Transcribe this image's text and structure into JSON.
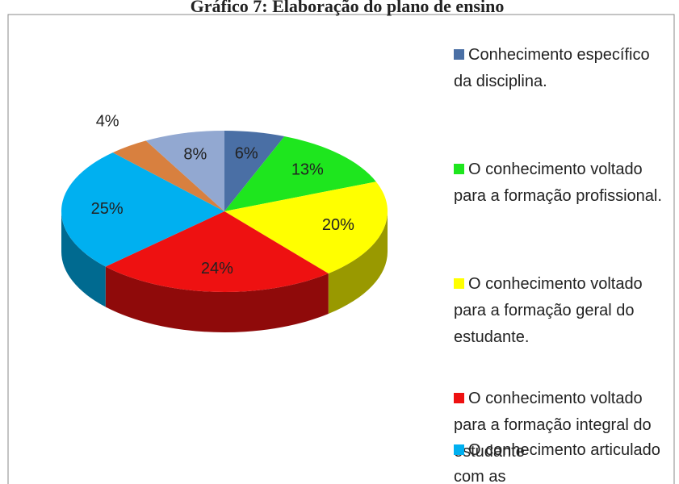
{
  "chart_data": {
    "type": "pie",
    "title": "Gráfico 7: Elaboração do plano de ensino",
    "categories": [
      "Conhecimento específico da disciplina.",
      "O conhecimento voltado para a formação profissional.",
      "O conhecimento voltado para a formação geral do estudante.",
      "O conhecimento voltado para a formação integral do estudante",
      "O conhecimento articulado com as",
      null,
      null
    ],
    "values": [
      6,
      13,
      20,
      24,
      25,
      4,
      8
    ],
    "value_labels": [
      "6%",
      "13%",
      "20%",
      "24%",
      "25%",
      "4%",
      "8%"
    ],
    "colors": [
      "#4a6fa5",
      "#1ee61e",
      "#ffff00",
      "#ee1111",
      "#00b0f0",
      "#d8803f",
      "#92a8d1"
    ],
    "legend": "right"
  }
}
